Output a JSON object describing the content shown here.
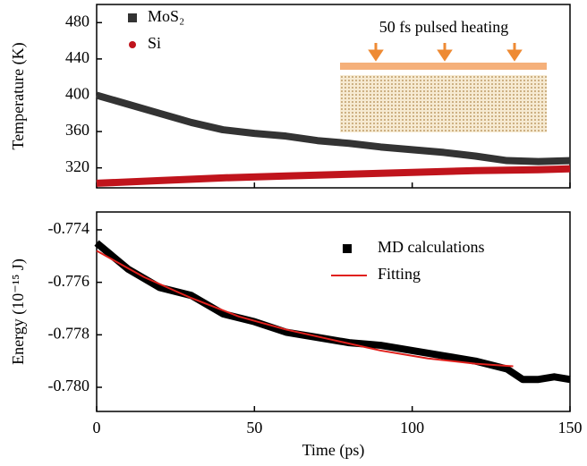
{
  "chart_data": [
    {
      "type": "line",
      "ylabel": "Temperature (K)",
      "annotation": "50 fs pulsed heating",
      "xlim": [
        0,
        150
      ],
      "ylim": [
        298,
        500
      ],
      "yticks": [
        320,
        360,
        400,
        440,
        480
      ],
      "legend": "upper left",
      "series": [
        {
          "name": "MoS₂",
          "color": "#333333",
          "marker": "square",
          "x": [
            0,
            10,
            20,
            30,
            40,
            50,
            60,
            70,
            80,
            90,
            100,
            110,
            120,
            130,
            140,
            150
          ],
          "values": [
            400,
            390,
            380,
            370,
            362,
            358,
            355,
            350,
            347,
            343,
            340,
            337,
            333,
            328,
            327,
            328
          ]
        },
        {
          "name": "Si",
          "color": "#c0141c",
          "marker": "circle",
          "x": [
            0,
            20,
            40,
            60,
            80,
            100,
            120,
            140,
            150
          ],
          "values": [
            303,
            306,
            309,
            311,
            313,
            315,
            317,
            318,
            319
          ]
        }
      ]
    },
    {
      "type": "line",
      "xlabel": "Time (ps)",
      "ylabel": "Energy (10⁻¹⁵ J)",
      "xlim": [
        0,
        150
      ],
      "xticks": [
        0,
        50,
        100,
        150
      ],
      "ylim": [
        -0.78092,
        -0.77332
      ],
      "yticks": [
        -0.774,
        -0.776,
        -0.778,
        {
          "value": -0.78,
          "label": "-0.780"
        }
      ],
      "legend": "upper right",
      "series": [
        {
          "name": "MD calculations",
          "color": "#000000",
          "marker": "square",
          "x": [
            0,
            10,
            20,
            30,
            40,
            50,
            60,
            70,
            80,
            90,
            100,
            110,
            120,
            130,
            135,
            140,
            145,
            150
          ],
          "values": [
            -0.7745,
            -0.7755,
            -0.7762,
            -0.7765,
            -0.7772,
            -0.7775,
            -0.7779,
            -0.7781,
            -0.7783,
            -0.7784,
            -0.7786,
            -0.7788,
            -0.779,
            -0.7793,
            -0.7797,
            -0.7797,
            -0.7796,
            -0.7797
          ]
        },
        {
          "name": "Fitting",
          "color": "#e0201c",
          "marker": "none",
          "x": [
            0,
            15,
            30,
            45,
            60,
            75,
            90,
            105,
            120,
            132
          ],
          "values": [
            -0.7748,
            -0.7758,
            -0.7766,
            -0.7773,
            -0.7778,
            -0.7782,
            -0.7786,
            -0.7789,
            -0.7791,
            -0.7792
          ]
        }
      ]
    }
  ]
}
